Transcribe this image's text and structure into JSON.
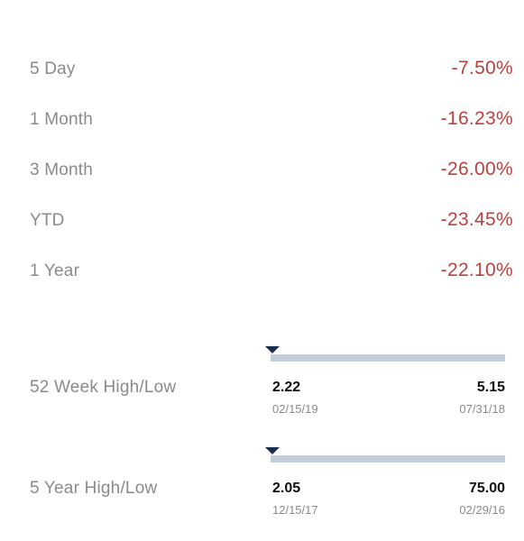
{
  "performance": [
    {
      "label": "5 Day",
      "value": "-7.50%"
    },
    {
      "label": "1 Month",
      "value": "-16.23%"
    },
    {
      "label": "3 Month",
      "value": "-26.00%"
    },
    {
      "label": "YTD",
      "value": "-23.45%"
    },
    {
      "label": "1 Year",
      "value": "-22.10%"
    }
  ],
  "ranges": [
    {
      "label": "52 Week High/Low",
      "low": "2.22",
      "low_date": "02/15/19",
      "high": "5.15",
      "high_date": "07/31/18",
      "current_position_fraction": 0.0
    },
    {
      "label": "5 Year High/Low",
      "low": "2.05",
      "low_date": "12/15/17",
      "high": "75.00",
      "high_date": "02/29/16",
      "current_position_fraction": 0.0
    }
  ],
  "colors": {
    "negative": "#b8423f",
    "label": "#8a8a8a",
    "bar": "#c3cdd8",
    "marker": "#1a2f4f"
  }
}
